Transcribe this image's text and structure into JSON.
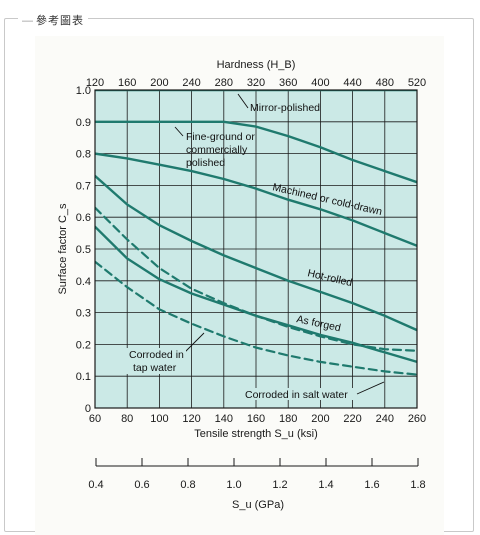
{
  "panel": {
    "legend": "參考圖表"
  },
  "chart_data": {
    "type": "line",
    "xlabel": "Tensile strength S_u (ksi)",
    "ylabel": "Surface factor C_s",
    "top_axis_label": "Hardness (H_B)",
    "bottom_axis_label": "S_u (GPa)",
    "xlim": [
      60,
      260
    ],
    "ylim": [
      0,
      1.0
    ],
    "x_ticks": [
      "60",
      "80",
      "100",
      "120",
      "140",
      "160",
      "180",
      "200",
      "220",
      "240",
      "260"
    ],
    "y_ticks": [
      "0",
      "0.1",
      "0.2",
      "0.3",
      "0.4",
      "0.5",
      "0.6",
      "0.7",
      "0.8",
      "0.9",
      "1.0"
    ],
    "top_ticks": [
      "120",
      "160",
      "200",
      "240",
      "280",
      "320",
      "360",
      "400",
      "440",
      "480",
      "520"
    ],
    "gpa_ticks": [
      "0.4",
      "0.6",
      "0.8",
      "1.0",
      "1.2",
      "1.4",
      "1.6",
      "1.8"
    ],
    "grid": true,
    "colors": {
      "plot_bg": "#cbe9e6",
      "line": "#1f7a6e",
      "grid": "#1a1a1a"
    },
    "series": [
      {
        "name": "Mirror-polished",
        "style": "solid",
        "x": [
          60,
          260
        ],
        "y": [
          1.0,
          1.0
        ]
      },
      {
        "name": "Fine-ground or commercially polished",
        "style": "solid",
        "x": [
          60,
          100,
          140,
          160,
          180,
          200,
          220,
          240,
          260
        ],
        "y": [
          0.9,
          0.9,
          0.9,
          0.885,
          0.855,
          0.82,
          0.78,
          0.745,
          0.71
        ]
      },
      {
        "name": "Machined or cold-drawn",
        "style": "solid",
        "x": [
          60,
          80,
          100,
          120,
          140,
          160,
          180,
          200,
          220,
          240,
          260
        ],
        "y": [
          0.8,
          0.785,
          0.765,
          0.745,
          0.72,
          0.69,
          0.655,
          0.625,
          0.59,
          0.55,
          0.51
        ]
      },
      {
        "name": "Hot-rolled",
        "style": "solid",
        "x": [
          60,
          80,
          100,
          120,
          140,
          160,
          180,
          200,
          220,
          240,
          260
        ],
        "y": [
          0.73,
          0.64,
          0.575,
          0.525,
          0.48,
          0.44,
          0.4,
          0.365,
          0.33,
          0.29,
          0.245
        ]
      },
      {
        "name": "As forged",
        "style": "solid",
        "x": [
          60,
          80,
          100,
          120,
          140,
          160,
          180,
          200,
          220,
          240,
          260
        ],
        "y": [
          0.57,
          0.47,
          0.405,
          0.36,
          0.325,
          0.29,
          0.26,
          0.23,
          0.205,
          0.175,
          0.145
        ]
      },
      {
        "name": "Corroded in tap water",
        "style": "dashed",
        "x": [
          60,
          80,
          100,
          120,
          140,
          160,
          180,
          200,
          220,
          240,
          260
        ],
        "y": [
          0.63,
          0.53,
          0.44,
          0.375,
          0.33,
          0.29,
          0.255,
          0.225,
          0.2,
          0.185,
          0.18
        ]
      },
      {
        "name": "Corroded in salt water",
        "style": "dashed",
        "x": [
          60,
          80,
          100,
          120,
          140,
          160,
          180,
          200,
          220,
          240,
          260
        ],
        "y": [
          0.46,
          0.38,
          0.31,
          0.265,
          0.225,
          0.19,
          0.165,
          0.145,
          0.13,
          0.115,
          0.105
        ]
      }
    ],
    "annotations": {
      "mirror": "Mirror-polished",
      "fine1": "Fine-ground or",
      "fine2": "commercially",
      "fine3": "polished",
      "machined": "Machined or cold-drawn",
      "hot": "Hot-rolled",
      "forged": "As forged",
      "tap1": "Corroded in",
      "tap2": "tap water",
      "salt": "Corroded in salt water"
    }
  }
}
